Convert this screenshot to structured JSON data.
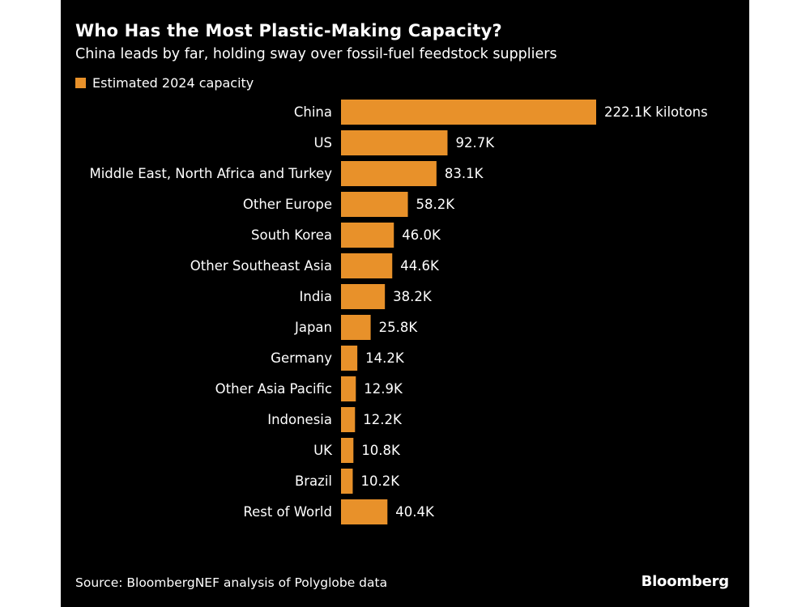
{
  "colors": {
    "background": "#000000",
    "bar": "#E8912A",
    "text": "#ffffff"
  },
  "source": "Source: BloombergNEF analysis of Polyglobe data",
  "brand": "Bloomberg",
  "chart_data": {
    "type": "bar",
    "orientation": "horizontal",
    "title": "Who Has the Most Plastic-Making Capacity?",
    "subtitle": "China leads by far, holding sway over fossil-fuel feedstock suppliers",
    "legend": [
      "Estimated 2024 capacity"
    ],
    "legend_position": "top-left",
    "unit": "kilotons",
    "xlim": [
      0,
      222.1
    ],
    "grid": false,
    "categories": [
      "China",
      "US",
      "Middle East, North Africa and Turkey",
      "Other Europe",
      "South Korea",
      "Other Southeast Asia",
      "India",
      "Japan",
      "Germany",
      "Other Asia Pacific",
      "Indonesia",
      "UK",
      "Brazil",
      "Rest of World"
    ],
    "values": [
      222.1,
      92.7,
      83.1,
      58.2,
      46.0,
      44.6,
      38.2,
      25.8,
      14.2,
      12.9,
      12.2,
      10.8,
      10.2,
      40.4
    ],
    "labels": [
      "222.1K kilotons",
      "92.7K",
      "83.1K",
      "58.2K",
      "46.0K",
      "44.6K",
      "38.2K",
      "25.8K",
      "14.2K",
      "12.9K",
      "12.2K",
      "10.8K",
      "10.2K",
      "40.4K"
    ]
  }
}
